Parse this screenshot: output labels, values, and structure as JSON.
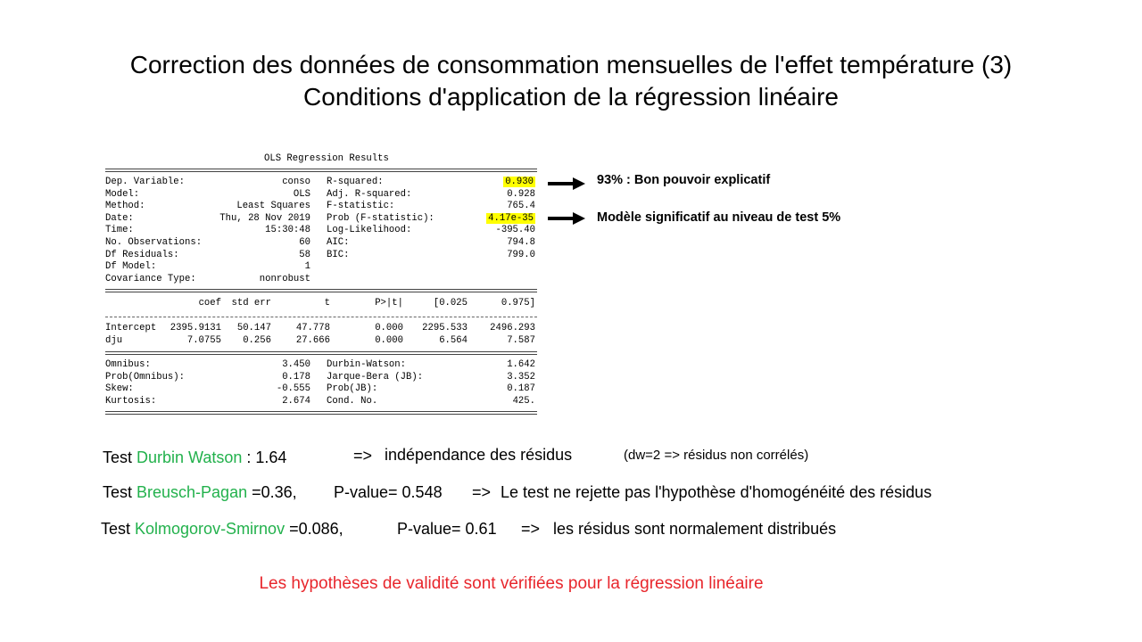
{
  "slide": {
    "title_line1": "Correction des données de consommation mensuelles de l'effet température (3)",
    "title_line2": "Conditions d'application de la régression linéaire"
  },
  "ols": {
    "header": "OLS Regression Results",
    "top_left": [
      {
        "label": "Dep. Variable:",
        "value": "conso"
      },
      {
        "label": "Model:",
        "value": "OLS"
      },
      {
        "label": "Method:",
        "value": "Least Squares"
      },
      {
        "label": "Date:",
        "value": "Thu, 28 Nov 2019"
      },
      {
        "label": "Time:",
        "value": "15:30:48"
      },
      {
        "label": "No. Observations:",
        "value": "60"
      },
      {
        "label": "Df Residuals:",
        "value": "58"
      },
      {
        "label": "Df Model:",
        "value": "1"
      },
      {
        "label": "Covariance Type:",
        "value": "nonrobust"
      }
    ],
    "top_right": [
      {
        "label": "R-squared:",
        "value": "0.930",
        "highlight": true
      },
      {
        "label": "Adj. R-squared:",
        "value": "0.928"
      },
      {
        "label": "F-statistic:",
        "value": "765.4"
      },
      {
        "label": "Prob (F-statistic):",
        "value": "4.17e-35",
        "highlight": true
      },
      {
        "label": "Log-Likelihood:",
        "value": "-395.40"
      },
      {
        "label": "AIC:",
        "value": "794.8"
      },
      {
        "label": "BIC:",
        "value": "799.0"
      }
    ],
    "coef_headers": [
      "coef",
      "std err",
      "t",
      "P>|t|",
      "[0.025",
      "0.975]"
    ],
    "coef_rows": [
      {
        "name": "Intercept",
        "values": [
          "2395.9131",
          "50.147",
          "47.778",
          "0.000",
          "2295.533",
          "2496.293"
        ]
      },
      {
        "name": "dju",
        "values": [
          "7.0755",
          "0.256",
          "27.666",
          "0.000",
          "6.564",
          "7.587"
        ]
      }
    ],
    "bottom_left": [
      {
        "label": "Omnibus:",
        "value": "3.450"
      },
      {
        "label": "Prob(Omnibus):",
        "value": "0.178"
      },
      {
        "label": "Skew:",
        "value": "-0.555"
      },
      {
        "label": "Kurtosis:",
        "value": "2.674"
      }
    ],
    "bottom_right": [
      {
        "label": "Durbin-Watson:",
        "value": "1.642"
      },
      {
        "label": "Jarque-Bera (JB):",
        "value": "3.352"
      },
      {
        "label": "Prob(JB):",
        "value": "0.187"
      },
      {
        "label": "Cond. No.",
        "value": "425."
      }
    ]
  },
  "annotations": {
    "r2_note": "93% :  Bon pouvoir explicatif",
    "prob_note": "Modèle significatif au niveau de test 5%"
  },
  "tests": {
    "dw": {
      "prefix": "Test ",
      "name": "Durbin Watson",
      "value": " : 1.64",
      "arrow": "=>",
      "result": "indépendance des résidus",
      "note": "(dw=2 => résidus non corrélés)"
    },
    "bp": {
      "prefix": "Test ",
      "name": "Breusch-Pagan",
      "value": " =0.36,",
      "pvalue": "P-value= 0.548",
      "arrow": "=>",
      "result": "Le test ne rejette pas l'hypothèse d'homogénéité des résidus"
    },
    "ks": {
      "prefix": "Test ",
      "name": "Kolmogorov-Smirnov",
      "value": " =0.086,",
      "pvalue": "P-value= 0.61",
      "arrow": "=>",
      "result": "les résidus sont normalement distribués"
    }
  },
  "conclusion": "Les hypothèses de validité sont vérifiées pour la régression linéaire",
  "colors": {
    "test_name": "#22b14c",
    "conclusion": "#e8262c",
    "highlight": "#ffff00"
  }
}
